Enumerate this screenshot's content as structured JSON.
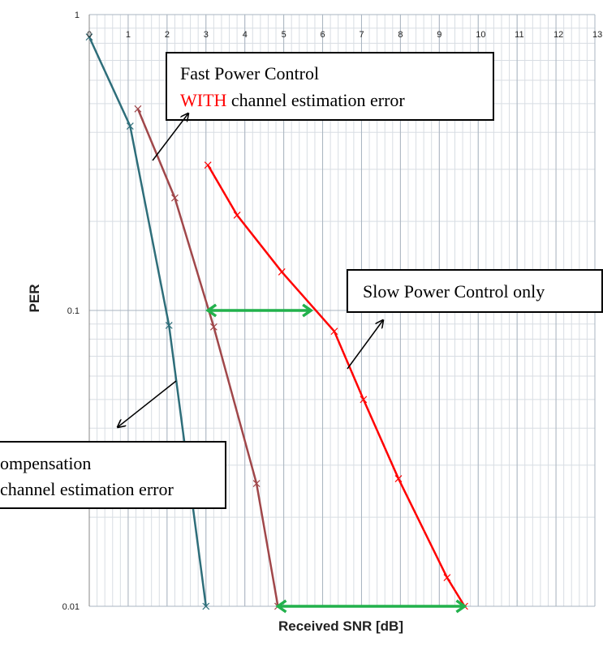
{
  "chart_data": {
    "type": "line",
    "log_y": true,
    "grid": true,
    "minor_grid": true,
    "xlabel": "Received SNR [dB]",
    "ylabel": "PER",
    "xlim": [
      0,
      13
    ],
    "ylim": [
      0.01,
      1
    ],
    "xticks": [
      0,
      1,
      2,
      3,
      4,
      5,
      6,
      7,
      8,
      9,
      10,
      11,
      12,
      13
    ],
    "yticks": [
      0.01,
      0.1,
      1
    ],
    "series": [
      {
        "color": "#2e6e7a",
        "x": [
          0,
          1.05,
          2.05,
          3
        ],
        "values": [
          0.84,
          0.42,
          0.089,
          0.01
        ]
      },
      {
        "color": "#a0474a",
        "x": [
          1.25,
          2.2,
          3.2,
          4.3,
          4.85
        ],
        "values": [
          0.48,
          0.24,
          0.088,
          0.026,
          0.01
        ]
      },
      {
        "color": "#ff0000",
        "x": [
          3.05,
          3.8,
          4.95,
          6.3,
          7.05,
          7.95,
          9.2,
          9.65
        ],
        "values": [
          0.31,
          0.21,
          0.135,
          0.085,
          0.05,
          0.027,
          0.0125,
          0.01
        ]
      }
    ],
    "spans": [
      {
        "x": [
          3.05,
          5.7
        ],
        "y": 0.1,
        "color": "#22b14c"
      },
      {
        "x": [
          4.85,
          9.65
        ],
        "y": 0.01,
        "color": "#22b14c"
      }
    ],
    "annotations": [
      {
        "line1": "Fast Power Control",
        "highlight": "WITH",
        "line2": "channel estimation error"
      },
      {
        "line1": "Slow Power Control only"
      },
      {
        "line1": "ompensation",
        "line2": "channel estimation error"
      }
    ]
  }
}
